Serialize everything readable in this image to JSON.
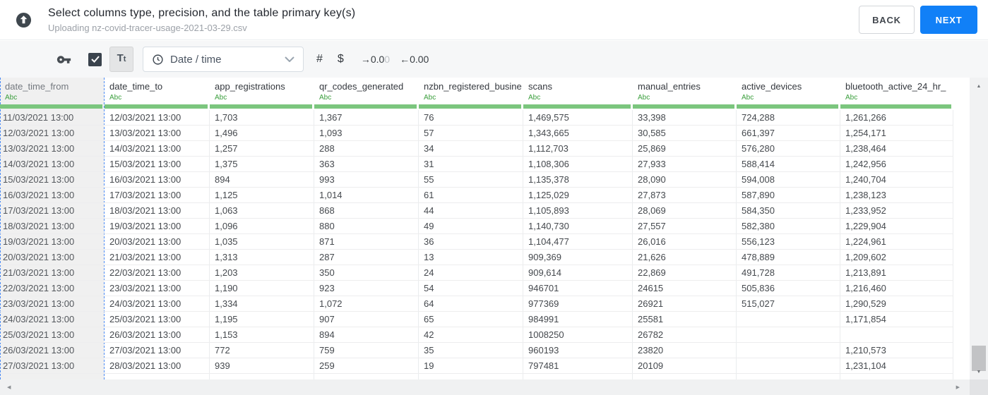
{
  "header": {
    "title": "Select columns type, precision, and the table primary key(s)",
    "subtitle": "Uploading nz-covid-tracer-usage-2021-03-29.csv",
    "back_label": "BACK",
    "next_label": "NEXT"
  },
  "toolbar": {
    "checkbox_checked": true,
    "text_type_label_large": "T",
    "text_type_label_small": "t",
    "type_dropdown_value": "Date / time",
    "number_type_label": "#",
    "currency_type_label": "$",
    "add_decimal_label": "→0.0",
    "add_decimal_muted": "0",
    "remove_decimal_label": "←0.00"
  },
  "icons": {
    "scroll_up": "▲",
    "scroll_down": "▼",
    "scroll_left": "◀",
    "scroll_right": "▶"
  },
  "table": {
    "type_label": "Abc",
    "selected_column": "date_time_from",
    "columns": [
      "date_time_from",
      "date_time_to",
      "app_registrations",
      "qr_codes_generated",
      "nzbn_registered_busine",
      "scans",
      "manual_entries",
      "active_devices",
      "bluetooth_active_24_hr_"
    ],
    "rows": [
      [
        "11/03/2021 13:00",
        "12/03/2021 13:00",
        "1,703",
        "1,367",
        "76",
        "1,469,575",
        "33,398",
        "724,288",
        "1,261,266"
      ],
      [
        "12/03/2021 13:00",
        "13/03/2021 13:00",
        "1,496",
        "1,093",
        "57",
        "1,343,665",
        "30,585",
        "661,397",
        "1,254,171"
      ],
      [
        "13/03/2021 13:00",
        "14/03/2021 13:00",
        "1,257",
        "288",
        "34",
        "1,112,703",
        "25,869",
        "576,280",
        "1,238,464"
      ],
      [
        "14/03/2021 13:00",
        "15/03/2021 13:00",
        "1,375",
        "363",
        "31",
        "1,108,306",
        "27,933",
        "588,414",
        "1,242,956"
      ],
      [
        "15/03/2021 13:00",
        "16/03/2021 13:00",
        "894",
        "993",
        "55",
        "1,135,378",
        "28,090",
        "594,008",
        "1,240,704"
      ],
      [
        "16/03/2021 13:00",
        "17/03/2021 13:00",
        "1,125",
        "1,014",
        "61",
        "1,125,029",
        "27,873",
        "587,890",
        "1,238,123"
      ],
      [
        "17/03/2021 13:00",
        "18/03/2021 13:00",
        "1,063",
        "868",
        "44",
        "1,105,893",
        "28,069",
        "584,350",
        "1,233,952"
      ],
      [
        "18/03/2021 13:00",
        "19/03/2021 13:00",
        "1,096",
        "880",
        "49",
        "1,140,730",
        "27,557",
        "582,380",
        "1,229,904"
      ],
      [
        "19/03/2021 13:00",
        "20/03/2021 13:00",
        "1,035",
        "871",
        "36",
        "1,104,477",
        "26,016",
        "556,123",
        "1,224,961"
      ],
      [
        "20/03/2021 13:00",
        "21/03/2021 13:00",
        "1,313",
        "287",
        "13",
        "909,369",
        "21,626",
        "478,889",
        "1,209,602"
      ],
      [
        "21/03/2021 13:00",
        "22/03/2021 13:00",
        "1,203",
        "350",
        "24",
        "909,614",
        "22,869",
        "491,728",
        "1,213,891"
      ],
      [
        "22/03/2021 13:00",
        "23/03/2021 13:00",
        "1,190",
        "923",
        "54",
        "946701",
        "24615",
        "505,836",
        "1,216,460"
      ],
      [
        "23/03/2021 13:00",
        "24/03/2021 13:00",
        "1,334",
        "1,072",
        "64",
        "977369",
        "26921",
        "515,027",
        "1,290,529"
      ],
      [
        "24/03/2021 13:00",
        "25/03/2021 13:00",
        "1,195",
        "907",
        "65",
        "984991",
        "25581",
        "",
        "1,171,854"
      ],
      [
        "25/03/2021 13:00",
        "26/03/2021 13:00",
        "1,153",
        "894",
        "42",
        "1008250",
        "26782",
        "",
        ""
      ],
      [
        "26/03/2021 13:00",
        "27/03/2021 13:00",
        "772",
        "759",
        "35",
        "960193",
        "23820",
        "",
        "1,210,573"
      ],
      [
        "27/03/2021 13:00",
        "28/03/2021 13:00",
        "939",
        "259",
        "19",
        "797481",
        "20109",
        "",
        "1,231,104"
      ]
    ]
  },
  "colors": {
    "accent_blue": "#1180f7",
    "selection_blue": "#4d8cf5",
    "type_green": "#3a9e3c",
    "accept_bar_green": "#7bc67e"
  }
}
